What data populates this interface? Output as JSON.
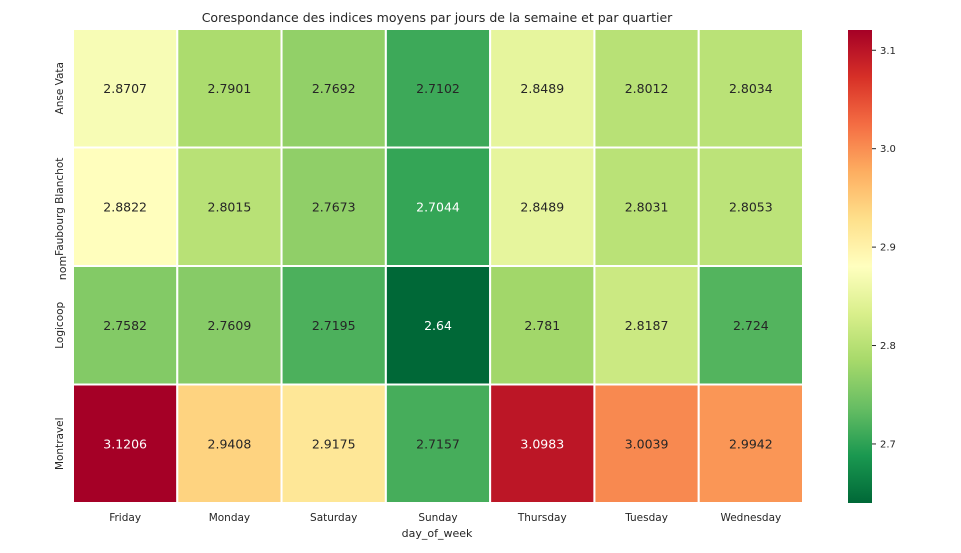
{
  "chart_data": {
    "type": "heatmap",
    "title": "Corespondance des indices moyens par jours de la semaine et par quartier",
    "xlabel": "day_of_week",
    "ylabel": "nom",
    "x_categories": [
      "Friday",
      "Monday",
      "Saturday",
      "Sunday",
      "Thursday",
      "Tuesday",
      "Wednesday"
    ],
    "y_categories": [
      "Anse Vata",
      "Faubourg Blanchot",
      "Logicoop",
      "Montravel"
    ],
    "values": [
      [
        2.8707,
        2.7901,
        2.7692,
        2.7102,
        2.8489,
        2.8012,
        2.8034
      ],
      [
        2.8822,
        2.8015,
        2.7673,
        2.7044,
        2.8489,
        2.8031,
        2.8053
      ],
      [
        2.7582,
        2.7609,
        2.7195,
        2.64,
        2.781,
        2.8187,
        2.724
      ],
      [
        3.1206,
        2.9408,
        2.9175,
        2.7157,
        3.0983,
        3.0039,
        2.9942
      ]
    ],
    "value_labels": [
      [
        "2.8707",
        "2.7901",
        "2.7692",
        "2.7102",
        "2.8489",
        "2.8012",
        "2.8034"
      ],
      [
        "2.8822",
        "2.8015",
        "2.7673",
        "2.7044",
        "2.8489",
        "2.8031",
        "2.8053"
      ],
      [
        "2.7582",
        "2.7609",
        "2.7195",
        "2.64",
        "2.781",
        "2.8187",
        "2.724"
      ],
      [
        "3.1206",
        "2.9408",
        "2.9175",
        "2.7157",
        "3.0983",
        "3.0039",
        "2.9942"
      ]
    ],
    "colormap": "RdYlGn_r",
    "vmin": 2.64,
    "vmax": 3.1206,
    "colorbar_ticks": [
      2.7,
      2.8,
      2.9,
      3.0,
      3.1
    ],
    "colorbar_tick_labels": [
      "2.7",
      "2.8",
      "2.9",
      "3.0",
      "3.1"
    ],
    "cell_border_color": "#ffffff"
  }
}
